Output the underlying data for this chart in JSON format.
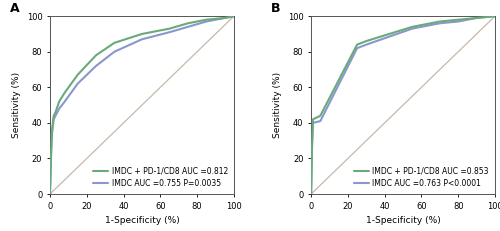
{
  "panel_A": {
    "title": "A",
    "combined_x": [
      0,
      0.5,
      1,
      2,
      3,
      5,
      8,
      15,
      25,
      35,
      50,
      65,
      75,
      85,
      95,
      100
    ],
    "combined_y": [
      0,
      20,
      35,
      44,
      46,
      52,
      57,
      67,
      78,
      85,
      90,
      93,
      96,
      98,
      99,
      100
    ],
    "imdc_x": [
      0,
      0.5,
      1,
      2,
      3,
      5,
      8,
      15,
      25,
      35,
      50,
      65,
      75,
      85,
      95,
      100
    ],
    "imdc_y": [
      0,
      20,
      33,
      42,
      44,
      48,
      52,
      62,
      72,
      80,
      87,
      91,
      94,
      97,
      99,
      100
    ],
    "combined_color": "#6aaa7a",
    "imdc_color": "#8898cc",
    "combined_label": "IMDC + PD-1/CD8 AUC =0.812",
    "imdc_label": "IMDC AUC =0.755 P=0.0035",
    "xlabel": "1-Specificity (%)",
    "ylabel": "Sensitivity (%)",
    "xlim": [
      0,
      100
    ],
    "ylim": [
      0,
      100
    ]
  },
  "panel_B": {
    "title": "B",
    "combined_x": [
      0,
      0.5,
      1,
      5,
      25,
      30,
      55,
      60,
      70,
      80,
      90,
      100
    ],
    "combined_y": [
      0,
      27,
      42,
      44,
      84,
      86,
      94,
      95,
      97,
      98,
      99,
      100
    ],
    "imdc_x": [
      0,
      0.5,
      1,
      5,
      25,
      30,
      55,
      60,
      70,
      80,
      90,
      100
    ],
    "imdc_y": [
      0,
      27,
      40,
      41,
      82,
      84,
      93,
      94,
      96,
      97,
      99,
      100
    ],
    "combined_color": "#6aaa7a",
    "imdc_color": "#8898cc",
    "combined_label": "IMDC + PD-1/CD8 AUC =0.853",
    "imdc_label": "IMDC AUC =0.763 P<0.0001",
    "xlabel": "1-Specificity (%)",
    "ylabel": "Sensitivity (%)",
    "xlim": [
      0,
      100
    ],
    "ylim": [
      0,
      100
    ]
  },
  "figure_bg": "#ffffff",
  "axes_bg": "#ffffff",
  "diagonal_color": "#c8b8a8",
  "linewidth": 1.5,
  "legend_fontsize": 5.5,
  "label_fontsize": 6.5,
  "tick_fontsize": 6.0,
  "title_fontsize": 9
}
